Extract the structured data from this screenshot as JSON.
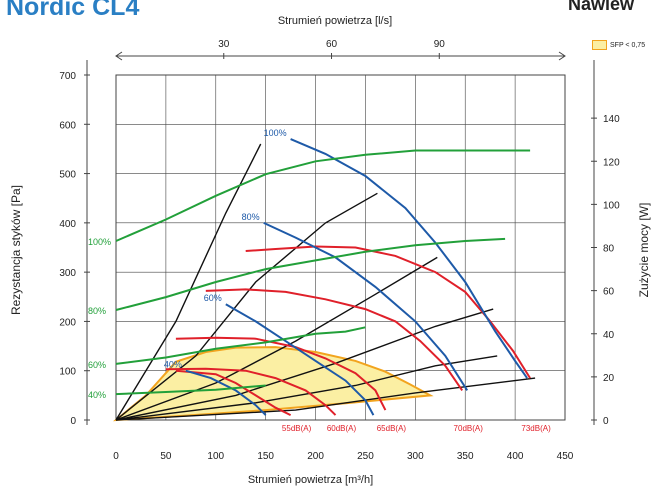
{
  "headings": {
    "left": "Nordic CL4",
    "right": "Nawiew"
  },
  "legend": {
    "label": "SFP < 0,75",
    "swatch_color": "#fbefa3",
    "swatch_border": "#f2a41e"
  },
  "chart_data": {
    "type": "line",
    "title": "",
    "xlabel": "Strumień powietrza [m³/h]",
    "x2label": "Strumień powietrza [l/s]",
    "ylabel": "Rezystancja styków [Pa]",
    "y2label": "Zużycie mocy [W]",
    "xlim": [
      0,
      450
    ],
    "ylim": [
      0,
      700
    ],
    "y2lim": [
      0,
      160
    ],
    "x2lim": [
      0,
      125
    ],
    "xticks": [
      0,
      50,
      100,
      150,
      200,
      250,
      300,
      350,
      400,
      450
    ],
    "yticks": [
      0,
      100,
      200,
      300,
      400,
      500,
      600,
      700
    ],
    "y2ticks": [
      0,
      20,
      40,
      60,
      80,
      100,
      120,
      140
    ],
    "x2ticks": [
      30,
      60,
      90
    ],
    "grid": true,
    "colors": {
      "fan": "#1e5aa8",
      "power": "#22a03a",
      "noise": "#e0202a",
      "system": "#111111",
      "sfp_fill": "#fbefa3",
      "sfp_edge": "#f2a41e"
    },
    "sfp_region": [
      [
        0,
        0
      ],
      [
        30,
        50
      ],
      [
        60,
        118
      ],
      [
        90,
        138
      ],
      [
        120,
        147
      ],
      [
        160,
        148
      ],
      [
        200,
        138
      ],
      [
        240,
        120
      ],
      [
        270,
        98
      ],
      [
        295,
        72
      ],
      [
        315,
        50
      ],
      [
        230,
        34
      ],
      [
        150,
        20
      ],
      [
        70,
        9
      ]
    ],
    "fan_curves": [
      {
        "name": "100%",
        "points": [
          [
            175,
            570
          ],
          [
            210,
            540
          ],
          [
            250,
            495
          ],
          [
            290,
            430
          ],
          [
            320,
            360
          ],
          [
            350,
            280
          ],
          [
            380,
            180
          ],
          [
            400,
            120
          ],
          [
            412,
            85
          ]
        ]
      },
      {
        "name": "80%",
        "points": [
          [
            148,
            400
          ],
          [
            180,
            370
          ],
          [
            220,
            330
          ],
          [
            260,
            270
          ],
          [
            300,
            200
          ],
          [
            330,
            130
          ],
          [
            352,
            60
          ]
        ]
      },
      {
        "name": "60%",
        "points": [
          [
            110,
            235
          ],
          [
            140,
            200
          ],
          [
            170,
            160
          ],
          [
            200,
            120
          ],
          [
            230,
            80
          ],
          [
            250,
            40
          ],
          [
            258,
            10
          ]
        ]
      },
      {
        "name": "40%",
        "points": [
          [
            70,
            100
          ],
          [
            95,
            85
          ],
          [
            120,
            60
          ],
          [
            140,
            30
          ],
          [
            150,
            10
          ]
        ]
      }
    ],
    "power_curves": [
      {
        "name": "100%",
        "y2": [
          [
            0,
            83
          ],
          [
            50,
            93
          ],
          [
            100,
            104
          ],
          [
            150,
            114
          ],
          [
            200,
            120
          ],
          [
            250,
            123
          ],
          [
            300,
            125
          ],
          [
            350,
            125
          ],
          [
            415,
            125
          ]
        ]
      },
      {
        "name": "80%",
        "y2": [
          [
            0,
            51
          ],
          [
            50,
            57
          ],
          [
            100,
            64
          ],
          [
            150,
            70
          ],
          [
            200,
            74
          ],
          [
            250,
            78
          ],
          [
            300,
            81
          ],
          [
            350,
            83
          ],
          [
            390,
            84
          ]
        ]
      },
      {
        "name": "60%",
        "y2": [
          [
            0,
            26
          ],
          [
            50,
            29
          ],
          [
            100,
            33
          ],
          [
            150,
            36
          ],
          [
            200,
            40
          ],
          [
            230,
            41
          ],
          [
            250,
            43
          ]
        ]
      },
      {
        "name": "40%",
        "y2": [
          [
            0,
            12
          ],
          [
            50,
            13
          ],
          [
            100,
            14
          ],
          [
            150,
            16
          ]
        ]
      }
    ],
    "noise_curves": [
      {
        "name": "73dB(A)",
        "points": [
          [
            130,
            343
          ],
          [
            160,
            347
          ],
          [
            200,
            352
          ],
          [
            240,
            350
          ],
          [
            280,
            333
          ],
          [
            320,
            300
          ],
          [
            350,
            260
          ],
          [
            375,
            200
          ],
          [
            398,
            140
          ],
          [
            415,
            85
          ]
        ]
      },
      {
        "name": "70dB(A)",
        "points": [
          [
            90,
            262
          ],
          [
            130,
            265
          ],
          [
            170,
            260
          ],
          [
            210,
            245
          ],
          [
            250,
            225
          ],
          [
            280,
            200
          ],
          [
            305,
            160
          ],
          [
            330,
            110
          ],
          [
            347,
            60
          ]
        ]
      },
      {
        "name": "65dB(A)",
        "points": [
          [
            60,
            165
          ],
          [
            100,
            167
          ],
          [
            140,
            165
          ],
          [
            180,
            148
          ],
          [
            210,
            125
          ],
          [
            240,
            95
          ],
          [
            260,
            60
          ],
          [
            270,
            20
          ]
        ]
      },
      {
        "name": "60dB(A)",
        "points": [
          [
            50,
            103
          ],
          [
            90,
            104
          ],
          [
            130,
            100
          ],
          [
            160,
            85
          ],
          [
            190,
            60
          ],
          [
            210,
            30
          ],
          [
            220,
            10
          ]
        ]
      },
      {
        "name": "55dB(A)",
        "points": [
          [
            60,
            100
          ],
          [
            100,
            93
          ],
          [
            120,
            75
          ],
          [
            140,
            50
          ],
          [
            160,
            25
          ],
          [
            175,
            10
          ]
        ]
      }
    ],
    "system_curves": [
      [
        [
          0,
          0
        ],
        [
          60,
          200
        ],
        [
          110,
          420
        ],
        [
          145,
          560
        ]
      ],
      [
        [
          0,
          0
        ],
        [
          80,
          130
        ],
        [
          140,
          280
        ],
        [
          210,
          400
        ],
        [
          262,
          460
        ]
      ],
      [
        [
          0,
          0
        ],
        [
          100,
          75
        ],
        [
          180,
          160
        ],
        [
          260,
          255
        ],
        [
          322,
          330
        ]
      ],
      [
        [
          0,
          0
        ],
        [
          120,
          50
        ],
        [
          220,
          115
        ],
        [
          320,
          190
        ],
        [
          378,
          225
        ]
      ],
      [
        [
          0,
          0
        ],
        [
          140,
          35
        ],
        [
          240,
          70
        ],
        [
          320,
          110
        ],
        [
          382,
          130
        ]
      ],
      [
        [
          0,
          0
        ],
        [
          180,
          20
        ],
        [
          300,
          55
        ],
        [
          420,
          85
        ]
      ]
    ],
    "labels": {
      "fan": [
        "100%",
        "80%",
        "60%",
        "40%"
      ],
      "power": [
        "100%",
        "80%",
        "60%",
        "40%"
      ],
      "noise": [
        "55dB(A)",
        "60dB(A)",
        "65dB(A)",
        "70dB(A)",
        "73dB(A)"
      ]
    }
  }
}
